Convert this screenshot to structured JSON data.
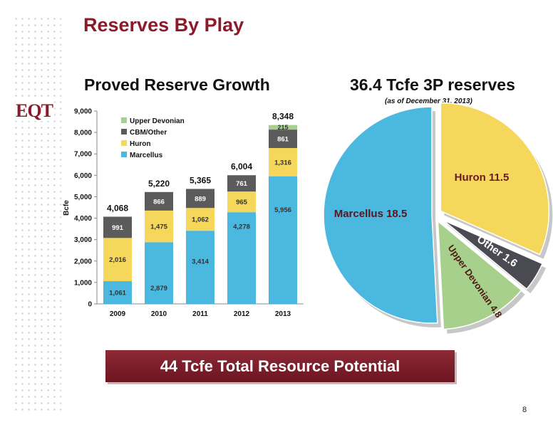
{
  "slide": {
    "title": "Reserves By Play",
    "bar_title": "Proved Reserve Growth",
    "pie_title": "36.4 Tcfe 3P reserves",
    "pie_subtitle": "(as of December 31, 2013)",
    "banner": "44 Tcfe Total Resource Potential",
    "page_number": "8",
    "logo_text": "EQT"
  },
  "colors": {
    "brand": "#8b1a2b",
    "marcellus": "#4bb8e0",
    "huron": "#f5d75c",
    "cbm_other": "#5b5b5b",
    "upper_devonian": "#a8d08d"
  },
  "chart_data": [
    {
      "type": "bar",
      "stacked": true,
      "title": "Proved Reserve Growth",
      "ylabel": "Bcfe",
      "ylim": [
        0,
        9000
      ],
      "yticks": [
        0,
        1000,
        2000,
        3000,
        4000,
        5000,
        6000,
        7000,
        8000,
        9000
      ],
      "ytick_labels": [
        "0",
        "1,000",
        "2,000",
        "3,000",
        "4,000",
        "5,000",
        "6,000",
        "7,000",
        "8,000",
        "9,000"
      ],
      "categories": [
        "2009",
        "2010",
        "2011",
        "2012",
        "2013"
      ],
      "legend_position": "top-left",
      "series": [
        {
          "name": "Marcellus",
          "color": "#4bb8e0",
          "values": [
            1061,
            2879,
            3414,
            4278,
            5956
          ],
          "labels": [
            "1,061",
            "2,879",
            "3,414",
            "4,278",
            "5,956"
          ]
        },
        {
          "name": "Huron",
          "color": "#f5d75c",
          "values": [
            2016,
            1475,
            1062,
            965,
            1316
          ],
          "labels": [
            "2,016",
            "1,475",
            "1,062",
            "965",
            "1,316"
          ]
        },
        {
          "name": "CBM/Other",
          "color": "#5b5b5b",
          "values": [
            991,
            866,
            889,
            761,
            861
          ],
          "labels": [
            "991",
            "866",
            "889",
            "761",
            "861"
          ]
        },
        {
          "name": "Upper Devonian",
          "color": "#a8d08d",
          "values": [
            0,
            0,
            0,
            0,
            215
          ],
          "labels": [
            "",
            "",
            "",
            "",
            "215"
          ]
        }
      ],
      "totals": [
        "4,068",
        "5,220",
        "5,365",
        "6,004",
        "8,348"
      ]
    },
    {
      "type": "pie",
      "title": "36.4 Tcfe 3P reserves",
      "subtitle": "(as of December 31, 2013)",
      "slices": [
        {
          "label": "Huron 11.5",
          "value": 11.5,
          "color": "#f5d75c"
        },
        {
          "label": "Other 1.6",
          "value": 1.6,
          "color": "#4a4a52"
        },
        {
          "label": "Upper Devonian 4.8",
          "value": 4.8,
          "color": "#a8d08d"
        },
        {
          "label": "Marcellus 18.5",
          "value": 18.5,
          "color": "#4bb8e0"
        }
      ]
    }
  ]
}
